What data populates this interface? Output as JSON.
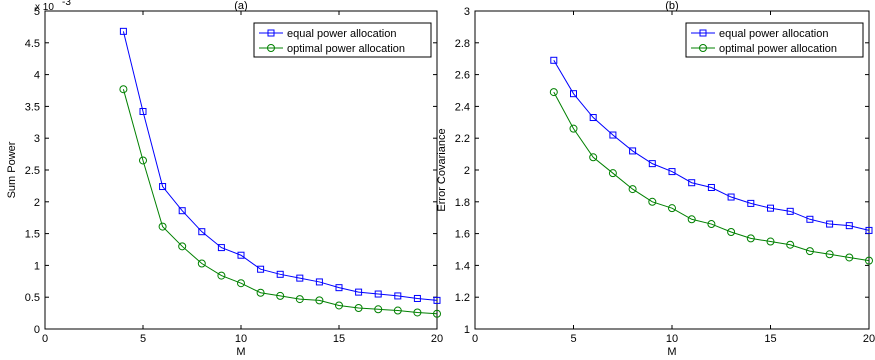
{
  "chart_data": [
    {
      "type": "line",
      "title": "(a)",
      "xlabel": "M",
      "ylabel": "Sum Power",
      "y_multiplier_label": "x 10",
      "y_multiplier_exp": "-3",
      "xlim": [
        0,
        20
      ],
      "ylim": [
        0,
        5
      ],
      "xticks": [
        0,
        5,
        10,
        15,
        20
      ],
      "yticks": [
        0,
        0.5,
        1,
        1.5,
        2,
        2.5,
        3,
        3.5,
        4,
        4.5,
        5
      ],
      "ytick_labels": [
        "0",
        "0.5",
        "1",
        "1.5",
        "2",
        "2.5",
        "3",
        "3.5",
        "4",
        "4.5",
        "5"
      ],
      "legend_position": "top-right",
      "x": [
        4,
        5,
        6,
        7,
        8,
        9,
        10,
        11,
        12,
        13,
        14,
        15,
        16,
        17,
        18,
        19,
        20
      ],
      "series": [
        {
          "name": "equal power allocation",
          "color": "#0000ff",
          "marker": "square",
          "values": [
            4.68,
            3.42,
            2.24,
            1.86,
            1.53,
            1.28,
            1.16,
            0.94,
            0.86,
            0.8,
            0.74,
            0.65,
            0.58,
            0.55,
            0.52,
            0.48,
            0.45
          ]
        },
        {
          "name": "optimal power allocation",
          "color": "#008000",
          "marker": "circle",
          "values": [
            3.77,
            2.65,
            1.61,
            1.3,
            1.03,
            0.84,
            0.72,
            0.57,
            0.52,
            0.47,
            0.45,
            0.37,
            0.33,
            0.31,
            0.29,
            0.26,
            0.24
          ]
        }
      ]
    },
    {
      "type": "line",
      "title": "(b)",
      "xlabel": "M",
      "ylabel": "Error Covariance",
      "xlim": [
        0,
        20
      ],
      "ylim": [
        1,
        3
      ],
      "xticks": [
        0,
        5,
        10,
        15,
        20
      ],
      "yticks": [
        1,
        1.2,
        1.4,
        1.6,
        1.8,
        2,
        2.2,
        2.4,
        2.6,
        2.8,
        3
      ],
      "ytick_labels": [
        "1",
        "1.2",
        "1.4",
        "1.6",
        "1.8",
        "2",
        "2.2",
        "2.4",
        "2.6",
        "2.8",
        "3"
      ],
      "legend_position": "top-right",
      "x": [
        4,
        5,
        6,
        7,
        8,
        9,
        10,
        11,
        12,
        13,
        14,
        15,
        16,
        17,
        18,
        19,
        20
      ],
      "series": [
        {
          "name": "equal power allocation",
          "color": "#0000ff",
          "marker": "square",
          "values": [
            2.69,
            2.48,
            2.33,
            2.22,
            2.12,
            2.04,
            1.99,
            1.92,
            1.89,
            1.83,
            1.79,
            1.76,
            1.74,
            1.69,
            1.66,
            1.65,
            1.62
          ]
        },
        {
          "name": "optimal power allocation",
          "color": "#008000",
          "marker": "circle",
          "values": [
            2.49,
            2.26,
            2.08,
            1.98,
            1.88,
            1.8,
            1.76,
            1.69,
            1.66,
            1.61,
            1.57,
            1.55,
            1.53,
            1.49,
            1.47,
            1.45,
            1.43
          ]
        }
      ]
    }
  ]
}
